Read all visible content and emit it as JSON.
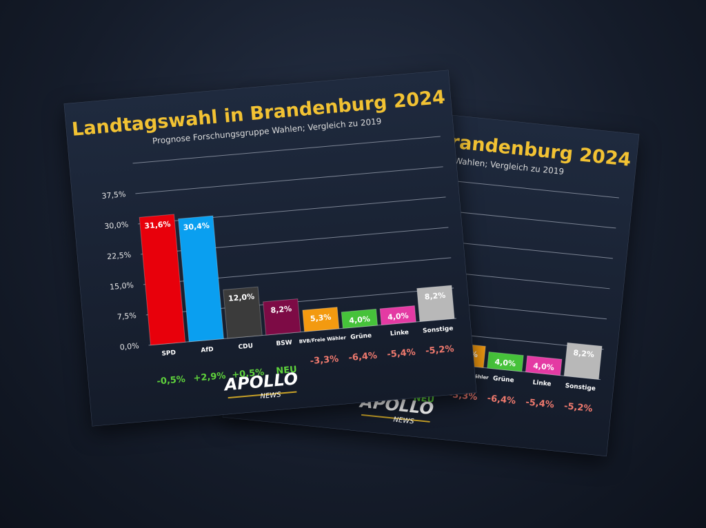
{
  "chart_data": {
    "type": "bar",
    "title": "Landtagswahl in Brandenburg 2024",
    "subtitle": "Prognose Forschungsgruppe Wahlen; Vergleich zu 2019",
    "categories": [
      "SPD",
      "AfD",
      "CDU",
      "BSW",
      "BVB/Freie Wähler",
      "Grüne",
      "Linke",
      "Sonstige"
    ],
    "values": [
      31.6,
      30.4,
      12.0,
      8.2,
      5.3,
      4.0,
      4.0,
      8.2
    ],
    "value_labels": [
      "31,6%",
      "30,4%",
      "12,0%",
      "8,2%",
      "5,3%",
      "4,0%",
      "4,0%",
      "8,2%"
    ],
    "colors": [
      "#e8000b",
      "#0a9ff0",
      "#3b3b3b",
      "#7d0b45",
      "#f39a10",
      "#46c23a",
      "#e43aa3",
      "#b8b8b8"
    ],
    "changes": [
      "-0,5%",
      "+2,9%",
      "+0,5%",
      "NEU",
      "-3,3%",
      "-6,4%",
      "-5,4%",
      "-5,2%"
    ],
    "change_colors": [
      "#5fd23c",
      "#5fd23c",
      "#5fd23c",
      "#5fd23c",
      "#f07a6e",
      "#f07a6e",
      "#f07a6e",
      "#f07a6e"
    ],
    "ylim": [
      0,
      45
    ],
    "yticks": [
      {
        "value": 0,
        "label": "0,0%"
      },
      {
        "value": 7.5,
        "label": "7,5%"
      },
      {
        "value": 15,
        "label": "15,0%"
      },
      {
        "value": 22.5,
        "label": "22,5%"
      },
      {
        "value": 30,
        "label": "30,0%"
      },
      {
        "value": 37.5,
        "label": "37,5%"
      }
    ],
    "grid": true,
    "logo": {
      "name": "APOLLO",
      "sub": "NEWS"
    }
  }
}
